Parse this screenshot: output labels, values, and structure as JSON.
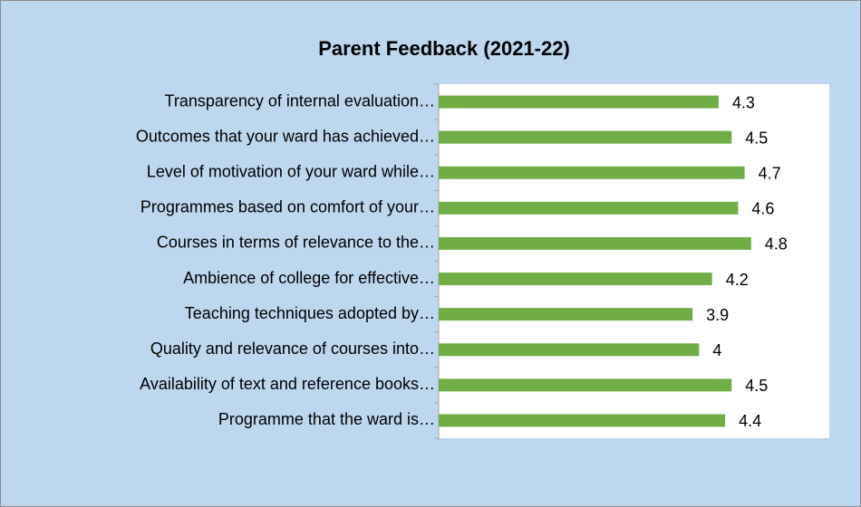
{
  "chart_data": {
    "type": "bar",
    "orientation": "horizontal",
    "title": "Parent Feedback (2021-22)",
    "categories": [
      "Transparency of internal evaluation…",
      "Outcomes that your ward has achieved…",
      "Level of motivation of your ward while…",
      "Programmes based on comfort of your…",
      "Courses in terms of relevance to the…",
      "Ambience of college for effective…",
      "Teaching techniques adopted by…",
      "Quality and relevance of courses into…",
      "Availability of text and reference books…",
      "Programme that the ward is…"
    ],
    "values": [
      4.3,
      4.5,
      4.7,
      4.6,
      4.8,
      4.2,
      3.9,
      4,
      4.5,
      4.4
    ],
    "color": "#70ad47",
    "xlim": [
      0,
      6
    ]
  }
}
